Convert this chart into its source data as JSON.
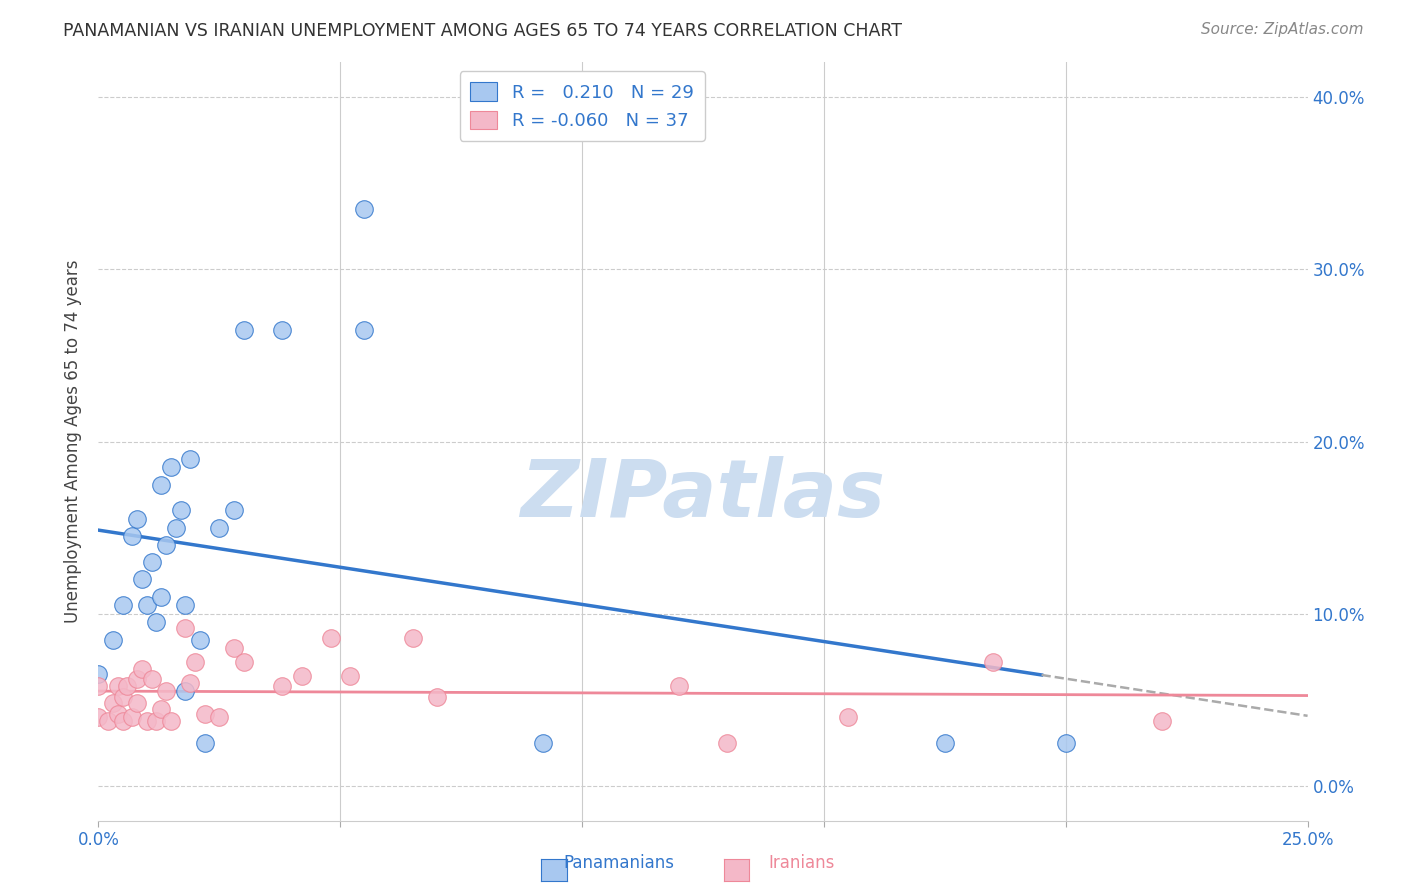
{
  "title": "PANAMANIAN VS IRANIAN UNEMPLOYMENT AMONG AGES 65 TO 74 YEARS CORRELATION CHART",
  "source": "Source: ZipAtlas.com",
  "xlabel": "",
  "ylabel": "Unemployment Among Ages 65 to 74 years",
  "xlim": [
    0.0,
    0.25
  ],
  "ylim": [
    -0.02,
    0.42
  ],
  "xticks": [
    0.0,
    0.05,
    0.1,
    0.15,
    0.2,
    0.25
  ],
  "yticks": [
    0.0,
    0.1,
    0.2,
    0.3,
    0.4
  ],
  "panama_R": 0.21,
  "panama_N": 29,
  "iran_R": -0.06,
  "iran_N": 37,
  "panama_color": "#a8c8f0",
  "iran_color": "#f4b8c8",
  "panama_line_color": "#3377cc",
  "iran_line_color": "#ee8899",
  "panama_x": [
    0.0,
    0.003,
    0.005,
    0.007,
    0.008,
    0.009,
    0.01,
    0.011,
    0.012,
    0.013,
    0.013,
    0.014,
    0.015,
    0.016,
    0.017,
    0.018,
    0.018,
    0.019,
    0.021,
    0.022,
    0.025,
    0.028,
    0.03,
    0.038,
    0.055,
    0.055,
    0.092,
    0.175,
    0.2
  ],
  "panama_y": [
    0.065,
    0.085,
    0.105,
    0.145,
    0.155,
    0.12,
    0.105,
    0.13,
    0.095,
    0.11,
    0.175,
    0.14,
    0.185,
    0.15,
    0.16,
    0.055,
    0.105,
    0.19,
    0.085,
    0.025,
    0.15,
    0.16,
    0.265,
    0.265,
    0.265,
    0.335,
    0.025,
    0.025,
    0.025
  ],
  "iran_x": [
    0.0,
    0.0,
    0.002,
    0.003,
    0.004,
    0.004,
    0.005,
    0.005,
    0.006,
    0.007,
    0.008,
    0.008,
    0.009,
    0.01,
    0.011,
    0.012,
    0.013,
    0.014,
    0.015,
    0.018,
    0.019,
    0.02,
    0.022,
    0.025,
    0.028,
    0.03,
    0.038,
    0.042,
    0.048,
    0.052,
    0.065,
    0.07,
    0.12,
    0.13,
    0.155,
    0.185,
    0.22
  ],
  "iran_y": [
    0.04,
    0.058,
    0.038,
    0.048,
    0.042,
    0.058,
    0.038,
    0.052,
    0.058,
    0.04,
    0.048,
    0.062,
    0.068,
    0.038,
    0.062,
    0.038,
    0.045,
    0.055,
    0.038,
    0.092,
    0.06,
    0.072,
    0.042,
    0.04,
    0.08,
    0.072,
    0.058,
    0.064,
    0.086,
    0.064,
    0.086,
    0.052,
    0.058,
    0.025,
    0.04,
    0.072,
    0.038
  ],
  "background_color": "#ffffff",
  "watermark_text": "ZIPatlas",
  "watermark_color": "#ccddf0",
  "panama_line_start": 0.0,
  "panama_line_end_solid": 0.195,
  "panama_line_end_dash": 0.25,
  "iran_line_start": 0.0,
  "iran_line_end": 0.25
}
